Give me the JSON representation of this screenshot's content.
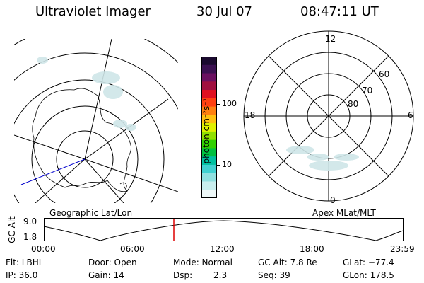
{
  "header": {
    "instrument": "Ultraviolet Imager",
    "date": "30 Jul 07",
    "time": "08:47:11 UT"
  },
  "left_panel": {
    "label": "Geographic Lat/Lon"
  },
  "right_panel": {
    "label": "Apex MLat/MLT",
    "mlt_labels": [
      "12",
      "18",
      "6",
      "0"
    ],
    "lat_labels": [
      "60",
      "70",
      "80"
    ]
  },
  "colorbar": {
    "unit_label": "photon cm⁻²s⁻¹",
    "tick_labels": [
      "100",
      "10"
    ],
    "colors": [
      "#1a0a2e",
      "#3a1050",
      "#6a1060",
      "#a01040",
      "#e01020",
      "#ff4010",
      "#ff8010",
      "#ffc010",
      "#e0f000",
      "#90e000",
      "#30d000",
      "#00c040",
      "#00c0a0",
      "#40d0d0",
      "#90e0e0",
      "#c8eeee",
      "#eef8f8"
    ]
  },
  "altitude_strip": {
    "axis_label": "GC Alt",
    "ymax_label": "9.0",
    "ymin_label": "1.8",
    "time_ticks": [
      "00:00",
      "06:00",
      "12:00",
      "18:00",
      "23:59"
    ],
    "marker_color": "#dd0000"
  },
  "info": {
    "flt": "Flt: LBHL",
    "door": "Door: Open",
    "mode": "Mode: Normal",
    "gc_alt": "GC Alt: 7.8 Re",
    "glat": "GLat: −77.4",
    "ip": "IP: 36.0",
    "gain": "Gain: 14",
    "dsp_label": "Dsp:",
    "dsp_value": "2.3",
    "seq": "Seq: 39",
    "glon": "GLon: 178.5"
  }
}
